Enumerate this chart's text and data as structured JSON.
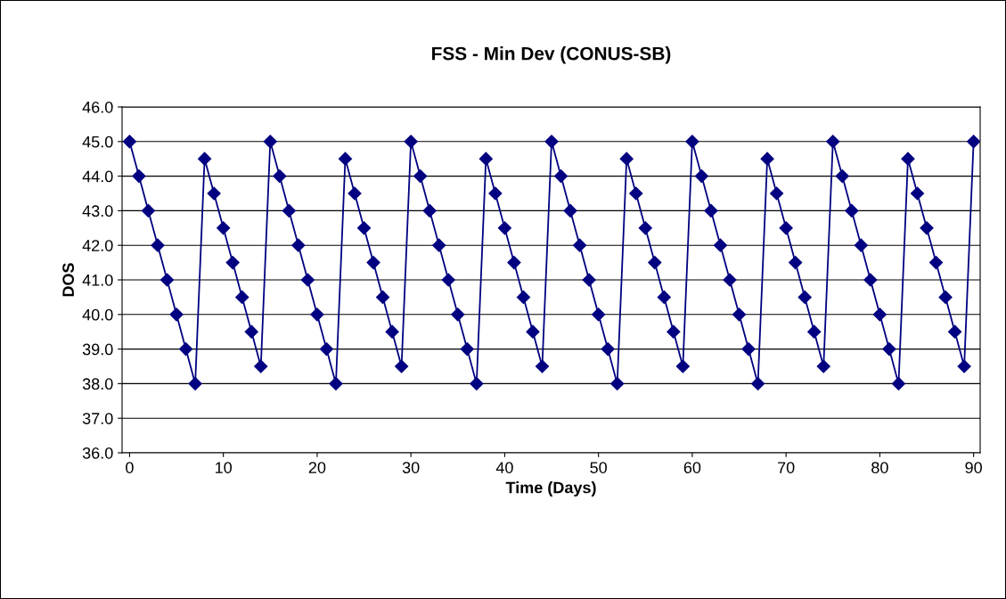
{
  "chart_data": {
    "type": "line",
    "title": "FSS - Min Dev (CONUS-SB)",
    "xlabel": "Time (Days)",
    "ylabel": "DOS",
    "x": [
      0,
      1,
      2,
      3,
      4,
      5,
      6,
      7,
      8,
      9,
      10,
      11,
      12,
      13,
      14,
      15,
      16,
      17,
      18,
      19,
      20,
      21,
      22,
      23,
      24,
      25,
      26,
      27,
      28,
      29,
      30,
      31,
      32,
      33,
      34,
      35,
      36,
      37,
      38,
      39,
      40,
      41,
      42,
      43,
      44,
      45,
      46,
      47,
      48,
      49,
      50,
      51,
      52,
      53,
      54,
      55,
      56,
      57,
      58,
      59,
      60,
      61,
      62,
      63,
      64,
      65,
      66,
      67,
      68,
      69,
      70,
      71,
      72,
      73,
      74,
      75,
      76,
      77,
      78,
      79,
      80,
      81,
      82,
      83,
      84,
      85,
      86,
      87,
      88,
      89,
      90
    ],
    "series": [
      {
        "color": "#000080",
        "values": [
          45,
          44,
          43,
          42,
          41,
          40,
          39,
          38,
          44.5,
          43.5,
          42.5,
          41.5,
          40.5,
          39.5,
          38.5,
          45,
          44,
          43,
          42,
          41,
          40,
          39,
          38,
          44.5,
          43.5,
          42.5,
          41.5,
          40.5,
          39.5,
          38.5,
          45,
          44,
          43,
          42,
          41,
          40,
          39,
          38,
          44.5,
          43.5,
          42.5,
          41.5,
          40.5,
          39.5,
          38.5,
          45,
          44,
          43,
          42,
          41,
          40,
          39,
          38,
          44.5,
          43.5,
          42.5,
          41.5,
          40.5,
          39.5,
          38.5,
          45,
          44,
          43,
          42,
          41,
          40,
          39,
          38,
          44.5,
          43.5,
          42.5,
          41.5,
          40.5,
          39.5,
          38.5,
          45,
          44,
          43,
          42,
          41,
          40,
          39,
          38,
          44.5,
          43.5,
          42.5,
          41.5,
          40.5,
          39.5,
          38.5,
          45
        ]
      }
    ],
    "xlim": [
      -0.8,
      90.7
    ],
    "xticks": [
      0,
      10,
      20,
      30,
      40,
      50,
      60,
      70,
      80,
      90
    ],
    "ylim": [
      36,
      46
    ],
    "yticks": [
      {
        "value": 36,
        "label": "36.0"
      },
      {
        "value": 37,
        "label": "37.0"
      },
      {
        "value": 38,
        "label": "38.0"
      },
      {
        "value": 39,
        "label": "39.0"
      },
      {
        "value": 40,
        "label": "40.0"
      },
      {
        "value": 41,
        "label": "41.0"
      },
      {
        "value": 42,
        "label": "42.0"
      },
      {
        "value": 43,
        "label": "43.0"
      },
      {
        "value": 44,
        "label": "44.0"
      },
      {
        "value": 45,
        "label": "45.0"
      },
      {
        "value": 46,
        "label": "46.0"
      }
    ],
    "grid": "y",
    "marker": "diamond",
    "line_style": "solid"
  }
}
